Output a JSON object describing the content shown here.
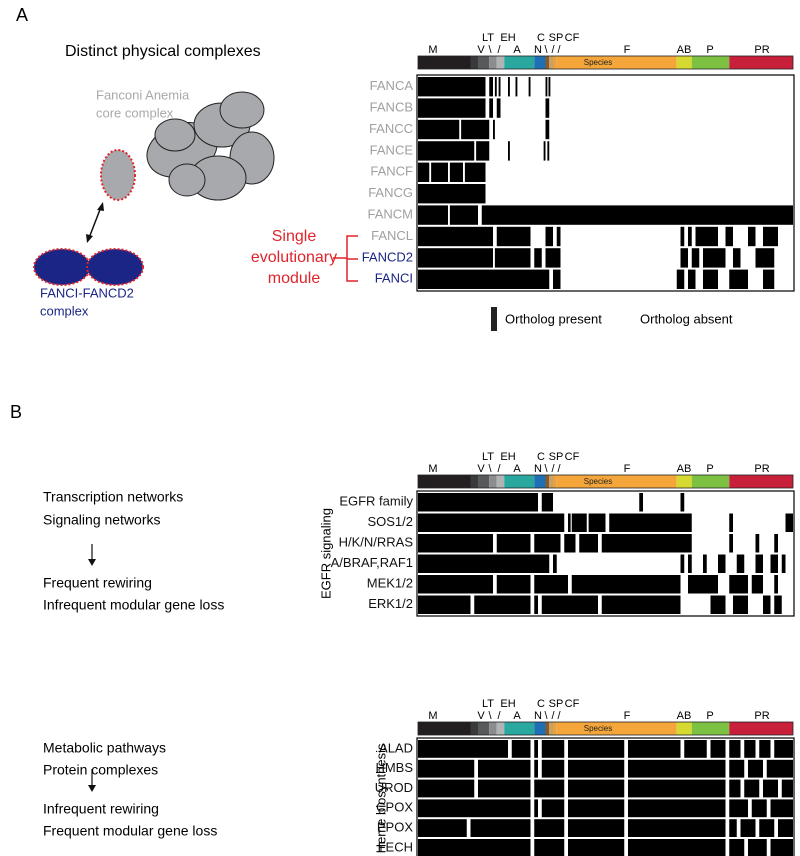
{
  "panel_a": {
    "label": "A",
    "title": "Distinct physical complexes",
    "core_complex": [
      "Fanconi Anemia",
      "core complex"
    ],
    "fanci_complex": [
      "FANCI-FANCD2",
      "complex"
    ],
    "module": [
      "Single",
      "evolutionary",
      "module"
    ],
    "legend": {
      "present": "Ortholog present",
      "absent": "Ortholog absent"
    },
    "heatmap": {
      "clades_top": [
        "LT",
        "EH",
        "C",
        "SP",
        "CF"
      ],
      "clades_bottom": [
        "M",
        "V",
        "\\",
        "/",
        "A",
        "N",
        "\\",
        "/",
        "/",
        "F",
        "AB",
        "P",
        "PR"
      ],
      "species_label": "Species",
      "rows": [
        {
          "name": "FANCA",
          "presence": [
            [
              0,
              18
            ],
            [
              19,
              20
            ],
            [
              20.5,
              21
            ],
            [
              21.5,
              22
            ],
            [
              24,
              24.5
            ],
            [
              26,
              26.5
            ],
            [
              29.5,
              30
            ],
            [
              34,
              34.5
            ],
            [
              34.8,
              35.3
            ]
          ]
        },
        {
          "name": "FANCB",
          "presence": [
            [
              0,
              18
            ],
            [
              19,
              20
            ],
            [
              21,
              22
            ],
            [
              34,
              35
            ]
          ]
        },
        {
          "name": "FANCC",
          "presence": [
            [
              0,
              11
            ],
            [
              11.5,
              19
            ],
            [
              20,
              20.5
            ],
            [
              34,
              35
            ]
          ]
        },
        {
          "name": "FANCE",
          "presence": [
            [
              0,
              15
            ],
            [
              15.5,
              19
            ],
            [
              24,
              24.5
            ],
            [
              33.5,
              34
            ],
            [
              34.5,
              35
            ]
          ]
        },
        {
          "name": "FANCF",
          "presence": [
            [
              0,
              3
            ],
            [
              3.5,
              8
            ],
            [
              8.5,
              12
            ],
            [
              12.5,
              18
            ]
          ]
        },
        {
          "name": "FANCG",
          "presence": [
            [
              0,
              18
            ]
          ]
        },
        {
          "name": "FANCM",
          "presence": [
            [
              0,
              8
            ],
            [
              8.5,
              16
            ],
            [
              17,
              100
            ]
          ]
        },
        {
          "name": "FANCL",
          "presence": [
            [
              0,
              20
            ],
            [
              21,
              30
            ],
            [
              34,
              36
            ],
            [
              37,
              38
            ],
            [
              70,
              71
            ],
            [
              72,
              73
            ],
            [
              74,
              80
            ],
            [
              82,
              84
            ],
            [
              88,
              90
            ],
            [
              92,
              96
            ]
          ]
        },
        {
          "name": "FANCD2",
          "presence": [
            [
              0,
              20
            ],
            [
              20.5,
              30
            ],
            [
              31,
              33
            ],
            [
              34,
              38
            ],
            [
              70,
              72
            ],
            [
              73,
              75
            ],
            [
              76,
              82
            ],
            [
              84,
              86
            ],
            [
              90,
              95
            ]
          ]
        },
        {
          "name": "FANCI",
          "presence": [
            [
              0,
              35
            ],
            [
              36,
              38
            ],
            [
              69,
              71
            ],
            [
              72,
              74
            ],
            [
              76,
              80
            ],
            [
              83,
              88
            ],
            [
              92,
              95
            ]
          ]
        }
      ]
    }
  },
  "panel_b": {
    "label": "B",
    "signaling": {
      "lines_top": [
        "Transcription networks",
        "Signaling networks"
      ],
      "lines_bottom": [
        "Frequent rewiring",
        "Infrequent modular gene loss"
      ],
      "heatmap": {
        "clades_top": [
          "LT",
          "EH",
          "C",
          "SP",
          "CF"
        ],
        "clades_bottom": [
          "M",
          "V",
          "\\",
          "/",
          "A",
          "N",
          "\\",
          "/",
          "/",
          "F",
          "AB",
          "P",
          "PR"
        ],
        "species_label": "Species",
        "side_label": "EGFR signaling",
        "rows": [
          {
            "name": "EGFR family",
            "presence": [
              [
                0,
                32
              ],
              [
                33,
                36
              ],
              [
                59,
                60
              ],
              [
                70,
                71
              ]
            ]
          },
          {
            "name": "SOS1/2",
            "presence": [
              [
                0,
                39
              ],
              [
                40,
                40.7
              ],
              [
                41,
                45
              ],
              [
                45.5,
                50
              ],
              [
                51,
                73
              ],
              [
                83,
                84
              ],
              [
                98,
                100
              ]
            ]
          },
          {
            "name": "H/K/N/RRAS",
            "presence": [
              [
                0,
                20
              ],
              [
                21,
                30
              ],
              [
                31,
                38
              ],
              [
                39,
                42
              ],
              [
                43,
                48
              ],
              [
                49,
                73
              ],
              [
                83,
                84
              ],
              [
                90,
                91
              ],
              [
                95,
                96
              ]
            ]
          },
          {
            "name": "A/BRAF,RAF1",
            "presence": [
              [
                0,
                35
              ],
              [
                36,
                37
              ],
              [
                70,
                71
              ],
              [
                72,
                73
              ],
              [
                76,
                77
              ],
              [
                80,
                82
              ],
              [
                85,
                87
              ],
              [
                90,
                92
              ],
              [
                94,
                96
              ],
              [
                97,
                98
              ]
            ]
          },
          {
            "name": "MEK1/2",
            "presence": [
              [
                0,
                20
              ],
              [
                21,
                30
              ],
              [
                31,
                40
              ],
              [
                41,
                70
              ],
              [
                72,
                80
              ],
              [
                83,
                88
              ],
              [
                89,
                92
              ],
              [
                95,
                96
              ]
            ]
          },
          {
            "name": "ERK1/2",
            "presence": [
              [
                0,
                14
              ],
              [
                15,
                30
              ],
              [
                31,
                32
              ],
              [
                33,
                48
              ],
              [
                49,
                70
              ],
              [
                78,
                82
              ],
              [
                84,
                88
              ],
              [
                92,
                94
              ],
              [
                95,
                97
              ]
            ]
          }
        ]
      }
    },
    "metabolic": {
      "lines_top": [
        "Metabolic pathways",
        "Protein complexes"
      ],
      "lines_bottom": [
        "Infrequent rewiring",
        "Frequent modular gene loss"
      ],
      "heatmap": {
        "clades_top": [
          "LT",
          "EH",
          "C",
          "SP",
          "CF"
        ],
        "clades_bottom": [
          "M",
          "V",
          "\\",
          "/",
          "A",
          "N",
          "\\",
          "/",
          "/",
          "F",
          "AB",
          "P",
          "PR"
        ],
        "species_label": "Species",
        "side_label": "Heme biosynthesis",
        "rows": [
          {
            "name": "ALAD",
            "presence": [
              [
                0,
                24
              ],
              [
                25,
                30
              ],
              [
                31,
                32
              ],
              [
                33,
                39
              ],
              [
                40,
                55
              ],
              [
                56,
                70
              ],
              [
                71,
                77
              ],
              [
                78,
                82
              ],
              [
                83,
                86
              ],
              [
                87,
                90
              ],
              [
                91,
                94
              ],
              [
                95,
                100
              ]
            ]
          },
          {
            "name": "HMBS",
            "presence": [
              [
                0,
                15
              ],
              [
                16,
                30
              ],
              [
                31,
                32
              ],
              [
                33,
                39
              ],
              [
                40,
                55
              ],
              [
                56,
                82
              ],
              [
                83,
                87
              ],
              [
                88,
                92
              ],
              [
                93,
                100
              ]
            ]
          },
          {
            "name": "UROD",
            "presence": [
              [
                0,
                15
              ],
              [
                16,
                30
              ],
              [
                31,
                39
              ],
              [
                40,
                55
              ],
              [
                56,
                82
              ],
              [
                83,
                86
              ],
              [
                87,
                91
              ],
              [
                92,
                96
              ],
              [
                97,
                100
              ]
            ]
          },
          {
            "name": "CPOX",
            "presence": [
              [
                0,
                30
              ],
              [
                31,
                32
              ],
              [
                33,
                39
              ],
              [
                40,
                55
              ],
              [
                56,
                82
              ],
              [
                83,
                88
              ],
              [
                89,
                93
              ],
              [
                94,
                100
              ]
            ]
          },
          {
            "name": "PPOX",
            "presence": [
              [
                0,
                13
              ],
              [
                14,
                30
              ],
              [
                31,
                39
              ],
              [
                40,
                55
              ],
              [
                56,
                82
              ],
              [
                83,
                85
              ],
              [
                86,
                90
              ],
              [
                91,
                95
              ],
              [
                96,
                100
              ]
            ]
          },
          {
            "name": "FECH",
            "presence": [
              [
                0,
                30
              ],
              [
                31,
                39
              ],
              [
                40,
                55
              ],
              [
                56,
                82
              ],
              [
                83,
                87
              ],
              [
                88,
                93
              ],
              [
                94,
                100
              ]
            ]
          }
        ]
      }
    }
  }
}
